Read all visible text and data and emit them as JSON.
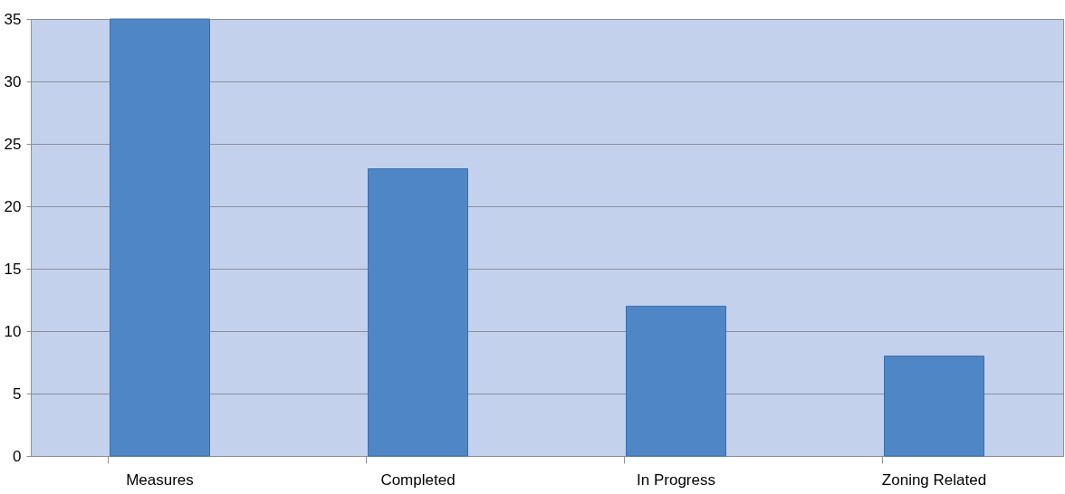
{
  "chart_data": {
    "type": "bar",
    "categories": [
      "Measures",
      "Completed",
      "In Progress",
      "Zoning Related"
    ],
    "values": [
      35,
      23,
      12,
      8
    ],
    "color": "#4f86c6",
    "ylim": [
      0,
      35
    ],
    "yticks": [
      0,
      5,
      10,
      15,
      20,
      25,
      30,
      35
    ],
    "grid": "y"
  }
}
